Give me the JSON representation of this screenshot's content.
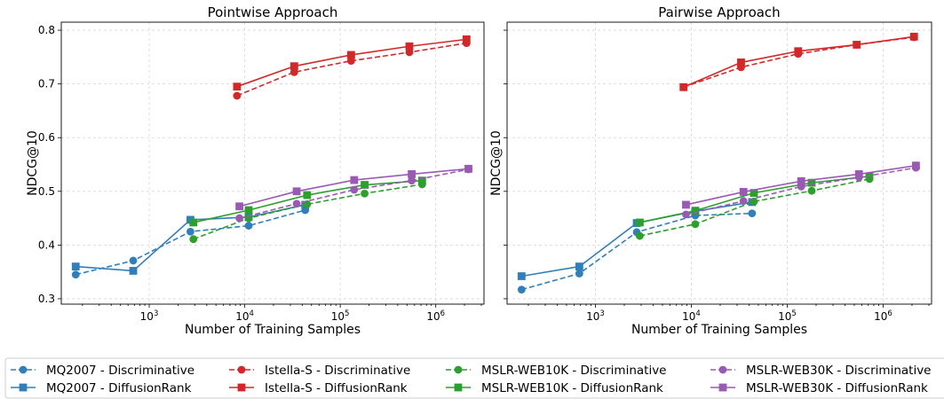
{
  "chart_data": [
    {
      "type": "line",
      "title": "Pointwise Approach",
      "xlabel": "Number of Training Samples",
      "ylabel": "NDCG@10",
      "xscale": "log",
      "xlim": [
        120,
        3200000
      ],
      "ylim": [
        0.29,
        0.815
      ],
      "x_ticks": [
        1000,
        10000,
        100000,
        1000000
      ],
      "x_tick_labels": [
        [
          "10",
          "3"
        ],
        [
          "10",
          "4"
        ],
        [
          "10",
          "5"
        ],
        [
          "10",
          "6"
        ]
      ],
      "y_ticks": [
        0.3,
        0.4,
        0.5,
        0.6,
        0.7,
        0.8
      ],
      "y_tick_labels": [
        "0.3",
        "0.4",
        "0.5",
        "0.6",
        "0.7",
        "0.8"
      ],
      "grid": true,
      "series": [
        {
          "dataset": "mq2007",
          "variant": "discriminative",
          "x": [
            170,
            680,
            2700,
            11000,
            43000
          ],
          "y": [
            0.345,
            0.371,
            0.425,
            0.436,
            0.465
          ]
        },
        {
          "dataset": "mq2007",
          "variant": "diffusionrank",
          "x": [
            170,
            680,
            2700,
            11000,
            43000
          ],
          "y": [
            0.36,
            0.352,
            0.447,
            0.452,
            0.475
          ]
        },
        {
          "dataset": "istella",
          "variant": "discriminative",
          "x": [
            8300,
            33000,
            130000,
            530000,
            2100000
          ],
          "y": [
            0.678,
            0.722,
            0.743,
            0.759,
            0.776
          ]
        },
        {
          "dataset": "istella",
          "variant": "diffusionrank",
          "x": [
            8300,
            33000,
            130000,
            530000,
            2100000
          ],
          "y": [
            0.695,
            0.733,
            0.754,
            0.77,
            0.783
          ]
        },
        {
          "dataset": "web10k",
          "variant": "discriminative",
          "x": [
            2900,
            11000,
            45000,
            180000,
            720000
          ],
          "y": [
            0.411,
            0.45,
            0.476,
            0.496,
            0.513
          ]
        },
        {
          "dataset": "web10k",
          "variant": "diffusionrank",
          "x": [
            2900,
            11000,
            45000,
            180000,
            720000
          ],
          "y": [
            0.442,
            0.465,
            0.493,
            0.512,
            0.52
          ]
        },
        {
          "dataset": "web30k",
          "variant": "discriminative",
          "x": [
            8800,
            35000,
            140000,
            560000,
            2200000
          ],
          "y": [
            0.45,
            0.477,
            0.503,
            0.52,
            0.541
          ]
        },
        {
          "dataset": "web30k",
          "variant": "diffusionrank",
          "x": [
            8800,
            35000,
            140000,
            560000,
            2200000
          ],
          "y": [
            0.472,
            0.5,
            0.521,
            0.532,
            0.542
          ]
        }
      ]
    },
    {
      "type": "line",
      "title": "Pairwise Approach",
      "xlabel": "Number of Training Samples",
      "ylabel": "NDCG@10",
      "xscale": "log",
      "xlim": [
        120,
        3200000
      ],
      "ylim": [
        0.29,
        0.815
      ],
      "x_ticks": [
        1000,
        10000,
        100000,
        1000000
      ],
      "x_tick_labels": [
        [
          "10",
          "3"
        ],
        [
          "10",
          "4"
        ],
        [
          "10",
          "5"
        ],
        [
          "10",
          "6"
        ]
      ],
      "y_ticks": [
        0.3,
        0.4,
        0.5,
        0.6,
        0.7,
        0.8
      ],
      "y_tick_labels": [
        "0.3",
        "0.4",
        "0.5",
        "0.6",
        "0.7",
        "0.8"
      ],
      "grid": true,
      "series": [
        {
          "dataset": "mq2007",
          "variant": "discriminative",
          "x": [
            170,
            680,
            2700,
            11000,
            43000
          ],
          "y": [
            0.317,
            0.347,
            0.424,
            0.455,
            0.459
          ]
        },
        {
          "dataset": "mq2007",
          "variant": "diffusionrank",
          "x": [
            170,
            680,
            2700,
            11000,
            43000
          ],
          "y": [
            0.342,
            0.36,
            0.441,
            0.463,
            0.48
          ]
        },
        {
          "dataset": "istella",
          "variant": "discriminative",
          "x": [
            8300,
            33000,
            130000,
            530000,
            2100000
          ],
          "y": [
            0.694,
            0.731,
            0.756,
            0.773,
            0.787
          ]
        },
        {
          "dataset": "istella",
          "variant": "diffusionrank",
          "x": [
            8300,
            33000,
            130000,
            530000,
            2100000
          ],
          "y": [
            0.694,
            0.74,
            0.761,
            0.773,
            0.788
          ]
        },
        {
          "dataset": "web10k",
          "variant": "discriminative",
          "x": [
            2900,
            11000,
            45000,
            180000,
            720000
          ],
          "y": [
            0.417,
            0.439,
            0.481,
            0.501,
            0.523
          ]
        },
        {
          "dataset": "web10k",
          "variant": "diffusionrank",
          "x": [
            2900,
            11000,
            45000,
            180000,
            720000
          ],
          "y": [
            0.442,
            0.464,
            0.497,
            0.516,
            0.528
          ]
        },
        {
          "dataset": "web30k",
          "variant": "discriminative",
          "x": [
            8800,
            35000,
            140000,
            560000,
            2200000
          ],
          "y": [
            0.457,
            0.482,
            0.509,
            0.526,
            0.544
          ]
        },
        {
          "dataset": "web30k",
          "variant": "diffusionrank",
          "x": [
            8800,
            35000,
            140000,
            560000,
            2200000
          ],
          "y": [
            0.475,
            0.499,
            0.519,
            0.532,
            0.548
          ]
        }
      ]
    }
  ],
  "styles": {
    "colors": {
      "mq2007": "#2f7fbd",
      "istella": "#d62728",
      "web10k": "#2ca02c",
      "web30k": "#9b59b6"
    },
    "variants": {
      "discriminative": {
        "marker": "circle",
        "dash": "dashed"
      },
      "diffusionrank": {
        "marker": "square",
        "dash": "solid"
      }
    },
    "grid_color": "#d6d6d6"
  },
  "legend": {
    "placement": "bottom",
    "entries": [
      {
        "dataset": "mq2007",
        "variant": "discriminative",
        "label": "MQ2007 - Discriminative"
      },
      {
        "dataset": "mq2007",
        "variant": "diffusionrank",
        "label": "MQ2007 - DiffusionRank"
      },
      {
        "dataset": "istella",
        "variant": "discriminative",
        "label": "Istella-S - Discriminative"
      },
      {
        "dataset": "istella",
        "variant": "diffusionrank",
        "label": "Istella-S - DiffusionRank"
      },
      {
        "dataset": "web10k",
        "variant": "discriminative",
        "label": "MSLR-WEB10K - Discriminative"
      },
      {
        "dataset": "web10k",
        "variant": "diffusionrank",
        "label": "MSLR-WEB10K - DiffusionRank"
      },
      {
        "dataset": "web30k",
        "variant": "discriminative",
        "label": "MSLR-WEB30K - Discriminative"
      },
      {
        "dataset": "web30k",
        "variant": "diffusionrank",
        "label": "MSLR-WEB30K - DiffusionRank"
      }
    ]
  }
}
